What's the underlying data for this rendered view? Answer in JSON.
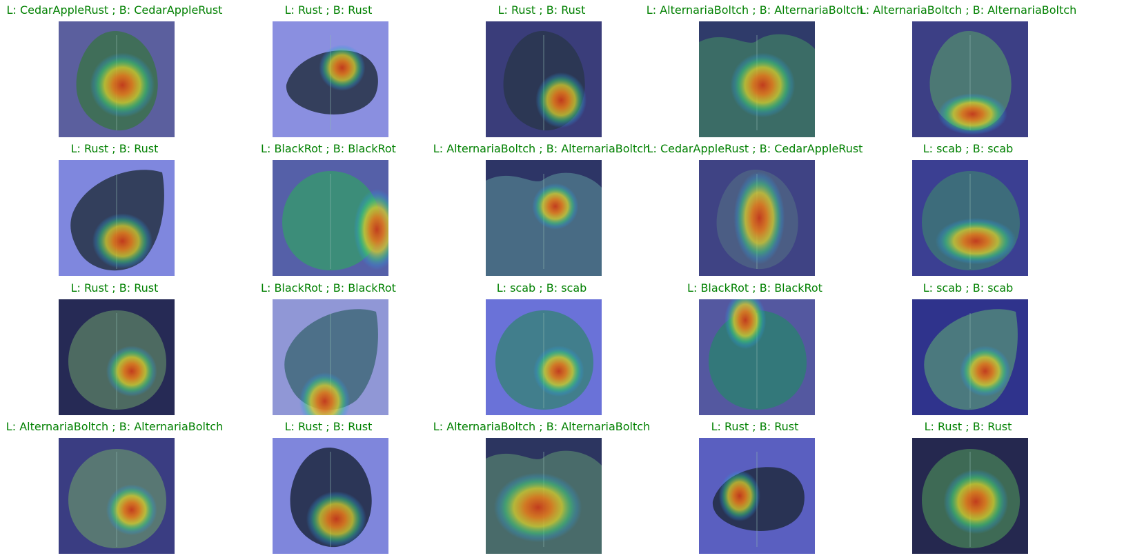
{
  "figure": {
    "title_color": "#008000",
    "panels": [
      {
        "title": "L: CedarAppleRust ; B: CedarAppleRust",
        "bg": "#5b5f9e",
        "leaf": "#3f6f55",
        "leaf_shape": "oval-upright",
        "hotspot": "center"
      },
      {
        "title": "L: Rust ; B: Rust",
        "bg": "#8a8fe0",
        "leaf": "#2f3b54",
        "leaf_shape": "oval-horizontal",
        "hotspot": "upper-center"
      },
      {
        "title": "L: Rust ; B: Rust",
        "bg": "#3a3d7a",
        "leaf": "#2b3752",
        "leaf_shape": "oval-upright",
        "hotspot": "lower-right"
      },
      {
        "title": "L: AlternariaBoltch ; B: AlternariaBoltch",
        "bg": "#2f3b6a",
        "leaf": "#3c6f66",
        "leaf_shape": "foliage",
        "hotspot": "center"
      },
      {
        "title": "L: AlternariaBoltch ; B: AlternariaBoltch",
        "bg": "#3c3f85",
        "leaf": "#4d7b73",
        "leaf_shape": "oval-upright",
        "hotspot": "bottom"
      },
      {
        "title": "L: Rust ; B: Rust",
        "bg": "#7f87de",
        "leaf": "#2f3b54",
        "leaf_shape": "tilted",
        "hotspot": "bottom-center"
      },
      {
        "title": "L: BlackRot ; B: BlackRot",
        "bg": "#5560a8",
        "leaf": "#3b8f76",
        "leaf_shape": "round",
        "hotspot": "right-edge"
      },
      {
        "title": "L: AlternariaBoltch ; B: AlternariaBoltch",
        "bg": "#2d3566",
        "leaf": "#4a6f86",
        "leaf_shape": "foliage",
        "hotspot": "upper-center"
      },
      {
        "title": "L: CedarAppleRust ; B: CedarAppleRust",
        "bg": "#3f4384",
        "leaf": "#4c5f84",
        "leaf_shape": "oval-upright",
        "hotspot": "center-tall"
      },
      {
        "title": "L: scab ; B: scab",
        "bg": "#3b3f92",
        "leaf": "#3d6f7a",
        "leaf_shape": "round",
        "hotspot": "lower-multi"
      },
      {
        "title": "L: Rust ; B: Rust",
        "bg": "#262a55",
        "leaf": "#4f6e62",
        "leaf_shape": "round",
        "hotspot": "center-right"
      },
      {
        "title": "L: BlackRot ; B: BlackRot",
        "bg": "#9097d6",
        "leaf": "#4a6e85",
        "leaf_shape": "tilted",
        "hotspot": "bottom-left"
      },
      {
        "title": "L: scab ; B: scab",
        "bg": "#6a72d8",
        "leaf": "#3f7e88",
        "leaf_shape": "round",
        "hotspot": "center-right"
      },
      {
        "title": "L: BlackRot ; B: BlackRot",
        "bg": "#5458a0",
        "leaf": "#327a78",
        "leaf_shape": "round",
        "hotspot": "top"
      },
      {
        "title": "L: scab ; B: scab",
        "bg": "#2f338c",
        "leaf": "#4d7d7d",
        "leaf_shape": "tilted",
        "hotspot": "center-right"
      },
      {
        "title": "L: AlternariaBoltch ; B: AlternariaBoltch",
        "bg": "#3a3d82",
        "leaf": "#5a7a72",
        "leaf_shape": "round",
        "hotspot": "center-right"
      },
      {
        "title": "L: Rust ; B: Rust",
        "bg": "#7f86dc",
        "leaf": "#28314f",
        "leaf_shape": "oval-upright",
        "hotspot": "bottom-center"
      },
      {
        "title": "L: AlternariaBoltch ; B: AlternariaBoltch",
        "bg": "#2c3560",
        "leaf": "#4b6f6a",
        "leaf_shape": "foliage",
        "hotspot": "center-wide"
      },
      {
        "title": "L: Rust ; B: Rust",
        "bg": "#5a5fc0",
        "leaf": "#27304e",
        "leaf_shape": "oval-horizontal",
        "hotspot": "left-center"
      },
      {
        "title": "L: Rust ; B: Rust",
        "bg": "#25284f",
        "leaf": "#3f6e55",
        "leaf_shape": "round",
        "hotspot": "center"
      }
    ]
  }
}
